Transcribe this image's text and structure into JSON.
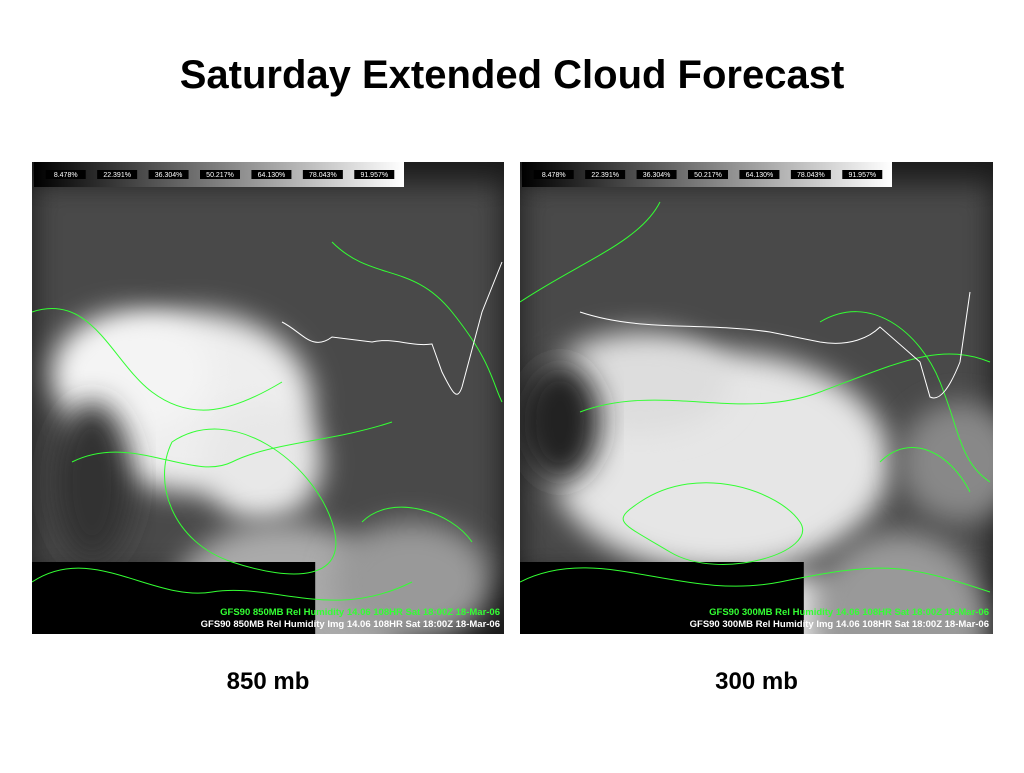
{
  "title": "Saturday Extended Cloud Forecast",
  "panels": [
    {
      "colorbar": [
        "8.478%",
        "22.391%",
        "36.304%",
        "50.217%",
        "64.130%",
        "78.043%",
        "91.957%"
      ],
      "caption_lines": [
        "GFS90 850MB Rel Humidity  14.06 108HR Sat 18:00Z 18-Mar-06",
        "GFS90 850MB Rel Humidity Img 14.06 108HR Sat 18:00Z 18-Mar-06"
      ],
      "label": "850 mb"
    },
    {
      "colorbar": [
        "8.478%",
        "22.391%",
        "36.304%",
        "50.217%",
        "64.130%",
        "78.043%",
        "91.957%"
      ],
      "caption_lines": [
        "GFS90 300MB Rel Humidity  14.06 108HR Sat 18:00Z 18-Mar-06",
        "GFS90 300MB Rel Humidity Img 14.06 108HR Sat 18:00Z 18-Mar-06"
      ],
      "label": "300 mb"
    }
  ]
}
